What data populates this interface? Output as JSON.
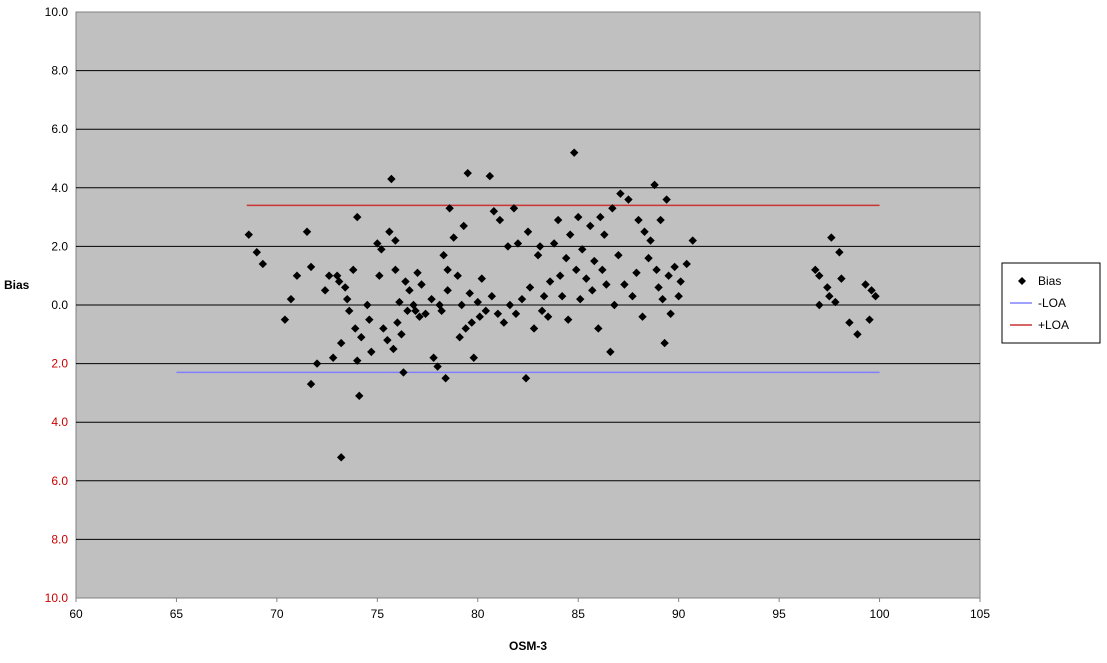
{
  "chart_data": {
    "type": "scatter",
    "xlabel": "OSM-3",
    "ylabel": "Bias",
    "xlim": [
      60,
      105
    ],
    "ylim": [
      -10,
      10
    ],
    "x_ticks": [
      60,
      65,
      70,
      75,
      80,
      85,
      90,
      95,
      100,
      105
    ],
    "y_ticks": [
      {
        "value": 10,
        "label": "10.0",
        "color": "#000000"
      },
      {
        "value": 8,
        "label": "8.0",
        "color": "#000000"
      },
      {
        "value": 6,
        "label": "6.0",
        "color": "#000000"
      },
      {
        "value": 4,
        "label": "4.0",
        "color": "#000000"
      },
      {
        "value": 2,
        "label": "2.0",
        "color": "#000000"
      },
      {
        "value": 0,
        "label": "0.0",
        "color": "#000000"
      },
      {
        "value": -2,
        "label": "2.0",
        "color": "#cc0000"
      },
      {
        "value": -4,
        "label": "4.0",
        "color": "#cc0000"
      },
      {
        "value": -6,
        "label": "6.0",
        "color": "#cc0000"
      },
      {
        "value": -8,
        "label": "8.0",
        "color": "#cc0000"
      },
      {
        "value": -10,
        "label": "10.0",
        "color": "#cc0000"
      }
    ],
    "grid": true,
    "plot_background": "#c0c0c0",
    "legend_position": "right",
    "legend": [
      {
        "label": "Bias",
        "kind": "marker",
        "color": "#000000"
      },
      {
        "label": "-LOA",
        "kind": "line",
        "color": "#8080ff"
      },
      {
        "label": "+LOA",
        "kind": "line",
        "color": "#cc3333"
      }
    ],
    "lines": [
      {
        "name": "-LOA",
        "x": [
          65,
          100
        ],
        "y": [
          -2.3,
          -2.3
        ],
        "color": "#8080ff"
      },
      {
        "name": "+LOA",
        "x": [
          68.5,
          100
        ],
        "y": [
          3.4,
          3.4
        ],
        "color": "#cc3333"
      }
    ],
    "series": [
      {
        "name": "Bias",
        "color": "#000000",
        "points": [
          [
            68.6,
            2.4
          ],
          [
            69.0,
            1.8
          ],
          [
            69.3,
            1.4
          ],
          [
            70.4,
            -0.5
          ],
          [
            70.7,
            0.2
          ],
          [
            71.0,
            1.0
          ],
          [
            71.5,
            2.5
          ],
          [
            71.7,
            1.3
          ],
          [
            71.7,
            -2.7
          ],
          [
            72.0,
            -2.0
          ],
          [
            72.4,
            0.5
          ],
          [
            72.6,
            1.0
          ],
          [
            72.8,
            -1.8
          ],
          [
            73.0,
            1.0
          ],
          [
            73.1,
            0.8
          ],
          [
            73.2,
            -1.3
          ],
          [
            73.2,
            -5.2
          ],
          [
            73.4,
            0.6
          ],
          [
            73.5,
            0.2
          ],
          [
            73.6,
            -0.2
          ],
          [
            73.8,
            1.2
          ],
          [
            73.9,
            -0.8
          ],
          [
            74.0,
            3.0
          ],
          [
            74.0,
            -1.9
          ],
          [
            74.1,
            -3.1
          ],
          [
            74.2,
            -1.1
          ],
          [
            74.5,
            0.0
          ],
          [
            74.6,
            -0.5
          ],
          [
            74.7,
            -1.6
          ],
          [
            75.0,
            2.1
          ],
          [
            75.1,
            1.0
          ],
          [
            75.2,
            1.9
          ],
          [
            75.3,
            -0.8
          ],
          [
            75.5,
            -1.2
          ],
          [
            75.6,
            2.5
          ],
          [
            75.7,
            4.3
          ],
          [
            75.8,
            -1.5
          ],
          [
            75.9,
            1.2
          ],
          [
            75.9,
            2.2
          ],
          [
            76.0,
            -0.6
          ],
          [
            76.1,
            0.1
          ],
          [
            76.2,
            -1.0
          ],
          [
            76.3,
            -2.3
          ],
          [
            76.4,
            0.8
          ],
          [
            76.5,
            -0.2
          ],
          [
            76.6,
            0.5
          ],
          [
            76.8,
            0.0
          ],
          [
            76.9,
            -0.2
          ],
          [
            77.0,
            1.1
          ],
          [
            77.1,
            -0.4
          ],
          [
            77.2,
            0.7
          ],
          [
            77.4,
            -0.3
          ],
          [
            77.7,
            0.2
          ],
          [
            77.8,
            -1.8
          ],
          [
            78.0,
            -2.1
          ],
          [
            78.1,
            0.0
          ],
          [
            78.2,
            -0.2
          ],
          [
            78.3,
            1.7
          ],
          [
            78.4,
            -2.5
          ],
          [
            78.5,
            1.2
          ],
          [
            78.5,
            0.5
          ],
          [
            78.6,
            3.3
          ],
          [
            78.8,
            2.3
          ],
          [
            79.0,
            1.0
          ],
          [
            79.1,
            -1.1
          ],
          [
            79.2,
            0.0
          ],
          [
            79.3,
            2.7
          ],
          [
            79.4,
            -0.8
          ],
          [
            79.5,
            4.5
          ],
          [
            79.6,
            0.4
          ],
          [
            79.7,
            -0.6
          ],
          [
            79.8,
            -1.8
          ],
          [
            80.0,
            0.1
          ],
          [
            80.1,
            -0.4
          ],
          [
            80.2,
            0.9
          ],
          [
            80.4,
            -0.2
          ],
          [
            80.6,
            4.4
          ],
          [
            80.7,
            0.3
          ],
          [
            80.8,
            3.2
          ],
          [
            81.0,
            -0.3
          ],
          [
            81.1,
            2.9
          ],
          [
            81.3,
            -0.6
          ],
          [
            81.5,
            2.0
          ],
          [
            81.6,
            0.0
          ],
          [
            81.8,
            3.3
          ],
          [
            81.9,
            -0.3
          ],
          [
            82.0,
            2.1
          ],
          [
            82.2,
            0.2
          ],
          [
            82.4,
            -2.5
          ],
          [
            82.5,
            2.5
          ],
          [
            82.6,
            0.6
          ],
          [
            82.8,
            -0.8
          ],
          [
            83.0,
            1.7
          ],
          [
            83.1,
            2.0
          ],
          [
            83.2,
            -0.2
          ],
          [
            83.3,
            0.3
          ],
          [
            83.5,
            -0.4
          ],
          [
            83.6,
            0.8
          ],
          [
            83.8,
            2.1
          ],
          [
            84.0,
            2.9
          ],
          [
            84.1,
            1.0
          ],
          [
            84.2,
            0.3
          ],
          [
            84.4,
            1.6
          ],
          [
            84.5,
            -0.5
          ],
          [
            84.6,
            2.4
          ],
          [
            84.8,
            5.2
          ],
          [
            84.9,
            1.2
          ],
          [
            85.0,
            3.0
          ],
          [
            85.1,
            0.2
          ],
          [
            85.2,
            1.9
          ],
          [
            85.4,
            0.9
          ],
          [
            85.6,
            2.7
          ],
          [
            85.7,
            0.5
          ],
          [
            85.8,
            1.5
          ],
          [
            86.0,
            -0.8
          ],
          [
            86.1,
            3.0
          ],
          [
            86.2,
            1.2
          ],
          [
            86.3,
            2.4
          ],
          [
            86.4,
            0.7
          ],
          [
            86.6,
            -1.6
          ],
          [
            86.7,
            3.3
          ],
          [
            86.8,
            0.0
          ],
          [
            87.0,
            1.7
          ],
          [
            87.1,
            3.8
          ],
          [
            87.3,
            0.7
          ],
          [
            87.5,
            3.6
          ],
          [
            87.7,
            0.3
          ],
          [
            87.9,
            1.1
          ],
          [
            88.0,
            2.9
          ],
          [
            88.2,
            -0.4
          ],
          [
            88.3,
            2.5
          ],
          [
            88.5,
            1.6
          ],
          [
            88.6,
            2.2
          ],
          [
            88.8,
            4.1
          ],
          [
            88.9,
            1.2
          ],
          [
            89.0,
            0.6
          ],
          [
            89.1,
            2.9
          ],
          [
            89.2,
            0.2
          ],
          [
            89.3,
            -1.3
          ],
          [
            89.4,
            3.6
          ],
          [
            89.5,
            1.0
          ],
          [
            89.6,
            -0.3
          ],
          [
            89.8,
            1.3
          ],
          [
            90.0,
            0.3
          ],
          [
            90.1,
            0.8
          ],
          [
            90.4,
            1.4
          ],
          [
            90.7,
            2.2
          ],
          [
            96.8,
            1.2
          ],
          [
            97.0,
            1.0
          ],
          [
            97.0,
            0.0
          ],
          [
            97.4,
            0.6
          ],
          [
            97.5,
            0.3
          ],
          [
            97.6,
            2.3
          ],
          [
            97.8,
            0.1
          ],
          [
            98.0,
            1.8
          ],
          [
            98.1,
            0.9
          ],
          [
            98.5,
            -0.6
          ],
          [
            98.9,
            -1.0
          ],
          [
            99.3,
            0.7
          ],
          [
            99.5,
            -0.5
          ],
          [
            99.6,
            0.5
          ],
          [
            99.8,
            0.3
          ]
        ]
      }
    ]
  }
}
